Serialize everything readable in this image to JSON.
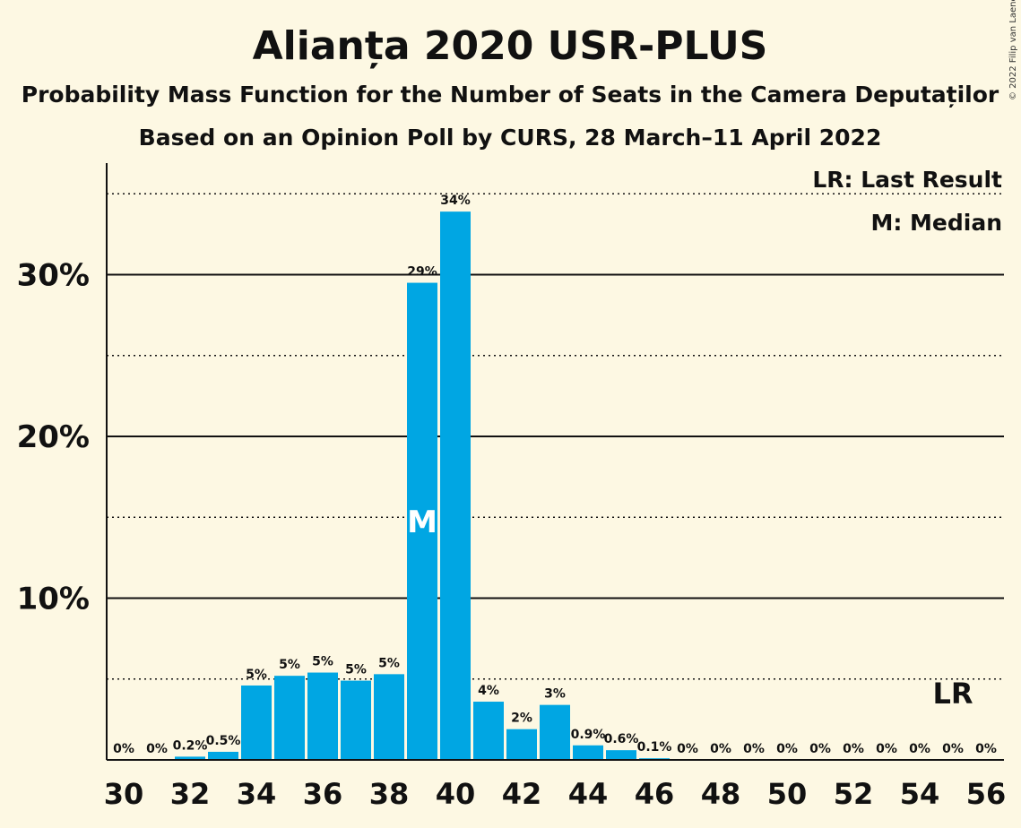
{
  "chart_data": {
    "type": "bar",
    "title": "Alianța 2020 USR-PLUS",
    "subtitle": "Probability Mass Function for the Number of Seats in the Camera Deputaților",
    "subtitle2": "Based on an Opinion Poll by CURS, 28 March–11 April 2022",
    "copyright": "© 2022 Filip van Laenen",
    "legend": [
      "LR: Last Result",
      "M: Median"
    ],
    "median_marker": "M",
    "median_seat": 39,
    "last_result_marker": "LR",
    "last_result_seat": 55,
    "x": [
      30,
      31,
      32,
      33,
      34,
      35,
      36,
      37,
      38,
      39,
      40,
      41,
      42,
      43,
      44,
      45,
      46,
      47,
      48,
      49,
      50,
      51,
      52,
      53,
      54,
      55,
      56
    ],
    "values": [
      0,
      0,
      0.2,
      0.5,
      4.6,
      5.2,
      5.4,
      4.9,
      5.3,
      29.5,
      33.9,
      3.6,
      1.9,
      3.4,
      0.9,
      0.6,
      0.1,
      0,
      0,
      0,
      0,
      0,
      0,
      0,
      0,
      0,
      0
    ],
    "labels": [
      "0%",
      "0%",
      "0.2%",
      "0.5%",
      "5%",
      "5%",
      "5%",
      "5%",
      "5%",
      "29%",
      "34%",
      "4%",
      "2%",
      "3%",
      "0.9%",
      "0.6%",
      "0.1%",
      "0%",
      "0%",
      "0%",
      "0%",
      "0%",
      "0%",
      "0%",
      "0%",
      "0%",
      "0%"
    ],
    "x_ticks": [
      30,
      32,
      34,
      36,
      38,
      40,
      42,
      44,
      46,
      48,
      50,
      52,
      54,
      56
    ],
    "y_ticks": [
      10,
      20,
      30
    ],
    "y_tick_labels": [
      "10%",
      "20%",
      "30%"
    ],
    "ylim": [
      0,
      37
    ],
    "bar_color": "#00a6e3",
    "background": "#fdf8e3"
  }
}
